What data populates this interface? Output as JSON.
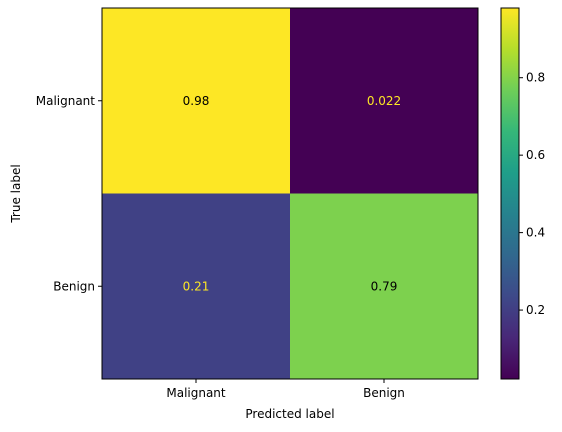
{
  "chart_data": {
    "type": "heatmap",
    "title": "",
    "xlabel": "Predicted label",
    "ylabel": "True label",
    "x_categories": [
      "Malignant",
      "Benign"
    ],
    "y_categories": [
      "Malignant",
      "Benign"
    ],
    "values": [
      [
        0.98,
        0.022
      ],
      [
        0.21,
        0.79
      ]
    ],
    "value_labels": [
      [
        "0.98",
        "0.022"
      ],
      [
        "0.21",
        "0.79"
      ]
    ],
    "colormap": "viridis",
    "colorbar": {
      "range": [
        0.022,
        0.98
      ],
      "ticks": [
        0.2,
        0.4,
        0.6,
        0.8
      ],
      "tick_labels": [
        "0.2",
        "0.4",
        "0.6",
        "0.8"
      ]
    },
    "text_colors": {
      "on_dark": "#fde725",
      "on_light": "#000000"
    },
    "grid": false
  }
}
